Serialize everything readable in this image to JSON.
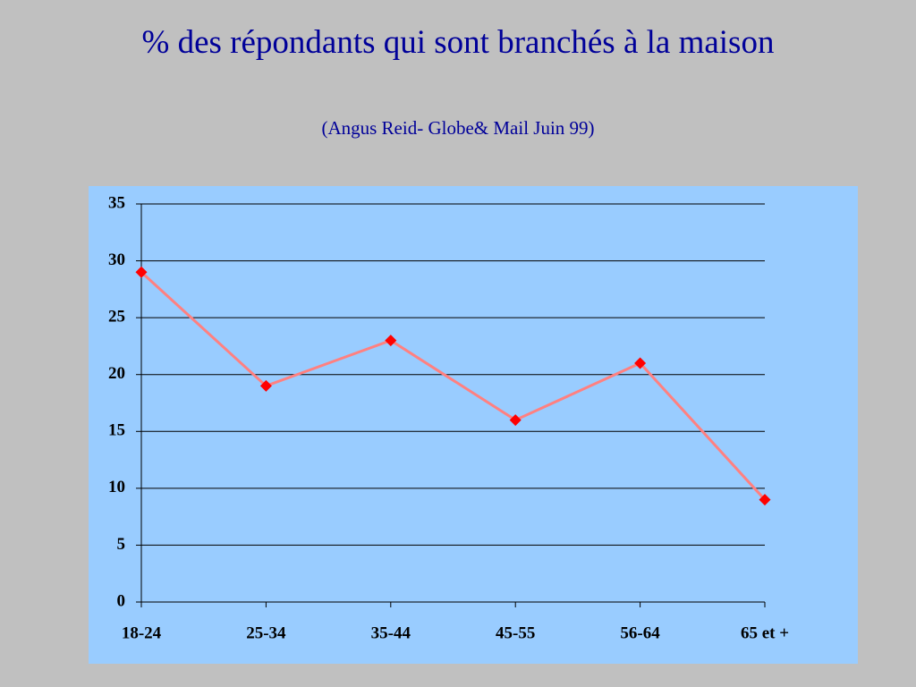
{
  "chart_data": {
    "type": "line",
    "title": "% des répondants qui sont branchés à la maison",
    "subtitle": "(Angus Reid- Globe& Mail Juin 99)",
    "categories": [
      "18-24",
      "25-34",
      "35-44",
      "45-55",
      "56-64",
      "65 et +"
    ],
    "values": [
      29,
      19,
      23,
      16,
      21,
      9
    ],
    "color": "#ff0000",
    "ylim": [
      0,
      35
    ],
    "yticks": [
      0,
      5,
      10,
      15,
      20,
      25,
      30,
      35
    ],
    "grid": true
  }
}
